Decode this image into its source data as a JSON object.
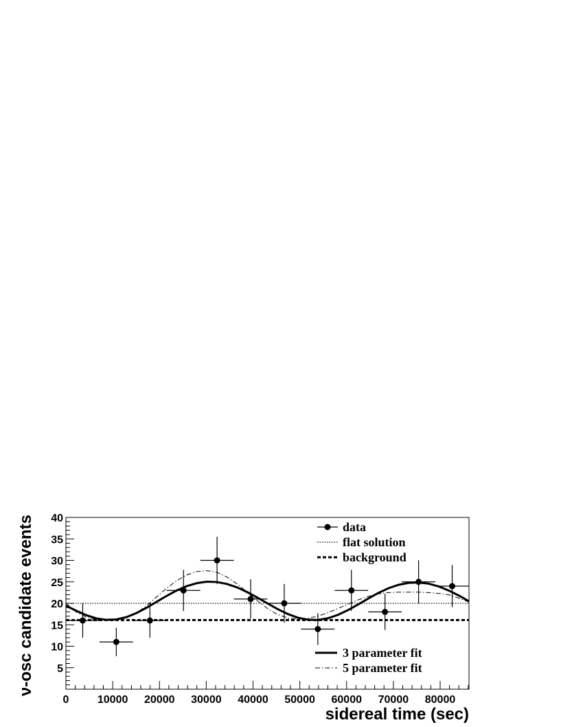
{
  "chart_data": {
    "type": "scatter",
    "xlabel": "sidereal time (sec)",
    "ylabel": "ν-osc candidate events",
    "xlim": [
      0,
      86164
    ],
    "ylim": [
      0,
      40
    ],
    "x_ticks": [
      0,
      10000,
      20000,
      30000,
      40000,
      50000,
      60000,
      70000,
      80000
    ],
    "x_tick_labels": [
      "0",
      "10000",
      "20000",
      "30000",
      "40000",
      "50000",
      "60000",
      "70000",
      "80000"
    ],
    "y_ticks": [
      5,
      10,
      15,
      20,
      25,
      30,
      35,
      40
    ],
    "y_tick_labels": [
      "5",
      "10",
      "15",
      "20",
      "25",
      "30",
      "35",
      "40"
    ],
    "grid": false,
    "series": [
      {
        "name": "data",
        "style": "points-with-error-bars",
        "x": [
          3590,
          10770,
          17950,
          25130,
          32310,
          39490,
          46670,
          53850,
          61030,
          68210,
          75390,
          82570
        ],
        "x_halfwidth": 3590,
        "y": [
          16,
          11,
          16,
          23,
          30,
          21,
          20,
          14,
          23,
          18,
          25,
          24
        ],
        "y_err_low": [
          4,
          3.3,
          4,
          4.8,
          5.5,
          4.6,
          4.5,
          3.7,
          4.8,
          4.2,
          5,
          4.9
        ],
        "y_err_high": [
          4,
          3.3,
          4,
          4.8,
          5.5,
          4.6,
          4.5,
          3.7,
          4.8,
          4.2,
          5,
          4.9
        ]
      },
      {
        "name": "flat solution",
        "style": "dotted",
        "y_constant": 20.0
      },
      {
        "name": "background",
        "style": "dashed",
        "y_constant": 16.1
      },
      {
        "name": "3 parameter fit",
        "style": "thick-solid",
        "x": [
          0,
          2154,
          4308,
          6462,
          8616,
          10770,
          12925,
          15079,
          17233,
          19387,
          21541,
          23695,
          25849,
          28003,
          30157,
          32312,
          34466,
          36620,
          38774,
          40928,
          43082,
          45236,
          47390,
          49544,
          51698,
          53853,
          56007,
          58161,
          60315,
          62469,
          64623,
          66777,
          68931,
          71085,
          73239,
          75393,
          77548,
          79702,
          81856,
          84010,
          86164
        ],
        "y": [
          19.44,
          18.3,
          17.26,
          16.51,
          16.15,
          16.24,
          16.78,
          17.73,
          18.96,
          20.35,
          21.74,
          23.0,
          24.01,
          24.7,
          25.03,
          24.95,
          24.49,
          23.69,
          22.6,
          21.33,
          19.98,
          18.67,
          17.53,
          16.67,
          16.19,
          16.13,
          16.52,
          17.32,
          18.43,
          19.74,
          21.11,
          22.41,
          23.5,
          24.3,
          24.75,
          24.85,
          24.57,
          23.93,
          22.97,
          21.8,
          20.48
        ]
      },
      {
        "name": "5 parameter fit",
        "style": "dash-dot",
        "x": [
          0,
          2154,
          4308,
          6462,
          8616,
          10770,
          12925,
          15079,
          17233,
          19387,
          21541,
          23695,
          25849,
          28003,
          30157,
          32312,
          34466,
          36620,
          38774,
          40928,
          43082,
          45236,
          47390,
          49544,
          51698,
          53853,
          56007,
          58161,
          60315,
          62469,
          64623,
          66777,
          68931,
          71085,
          73239,
          75393,
          77548,
          79702,
          81856,
          84010,
          86164
        ],
        "y": [
          20.0,
          18.0,
          16.8,
          16.2,
          16.1,
          16.2,
          16.7,
          17.8,
          19.4,
          21.5,
          23.5,
          25.3,
          26.6,
          27.4,
          27.6,
          27.2,
          26.1,
          24.5,
          22.6,
          20.6,
          18.8,
          17.4,
          16.6,
          16.3,
          16.5,
          17.0,
          17.8,
          18.8,
          19.8,
          20.8,
          21.6,
          22.2,
          22.5,
          22.6,
          22.6,
          22.6,
          22.5,
          22.3,
          22.0,
          21.2,
          20.3
        ]
      }
    ],
    "legend": {
      "upper": [
        {
          "label": "data",
          "marker": "point-with-error-bar"
        },
        {
          "label": "flat solution",
          "marker": "dotted"
        },
        {
          "label": "background",
          "marker": "dashed"
        }
      ],
      "lower": [
        {
          "label": "3 parameter fit",
          "marker": "thick-solid"
        },
        {
          "label": "5 parameter fit",
          "marker": "dash-dot"
        }
      ],
      "placement": "top-right and bottom-right"
    }
  }
}
